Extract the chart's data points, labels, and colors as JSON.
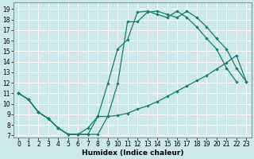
{
  "xlabel": "Humidex (Indice chaleur)",
  "background_color": "#cce8e8",
  "grid_color": "#b8d8d8",
  "line_color": "#1a7a6a",
  "xlim": [
    -0.5,
    23.5
  ],
  "ylim": [
    6.8,
    19.6
  ],
  "xticks": [
    0,
    1,
    2,
    3,
    4,
    5,
    6,
    7,
    8,
    9,
    10,
    11,
    12,
    13,
    14,
    15,
    16,
    17,
    18,
    19,
    20,
    21,
    22,
    23
  ],
  "yticks": [
    7,
    8,
    9,
    10,
    11,
    12,
    13,
    14,
    15,
    16,
    17,
    18,
    19
  ],
  "curve1_x": [
    0,
    1,
    2,
    3,
    4,
    5,
    6,
    7,
    8,
    9,
    10,
    11,
    12,
    13,
    14,
    15,
    16,
    17,
    18,
    19,
    20,
    21,
    22,
    23
  ],
  "curve1_y": [
    11,
    10.4,
    9.2,
    8.6,
    7.7,
    7.1,
    7.1,
    7.1,
    7.1,
    8.8,
    11.9,
    17.8,
    17.8,
    18.7,
    18.8,
    18.5,
    18.2,
    18.8,
    18.2,
    17.3,
    16.2,
    15.2,
    13.4,
    12.1
  ],
  "curve2_x": [
    0,
    1,
    2,
    3,
    4,
    5,
    6,
    7,
    8,
    9,
    10,
    11,
    12,
    13,
    14,
    15,
    16,
    17,
    18,
    19,
    20,
    21,
    22
  ],
  "curve2_y": [
    11,
    10.4,
    9.2,
    8.6,
    7.7,
    7.1,
    7.1,
    7.7,
    8.8,
    11.9,
    15.2,
    16.1,
    18.7,
    18.8,
    18.5,
    18.2,
    18.8,
    18.2,
    17.3,
    16.2,
    15.2,
    13.4,
    12.1
  ],
  "curve3_x": [
    0,
    1,
    2,
    3,
    4,
    5,
    6,
    7,
    8,
    9,
    10,
    11,
    12,
    13,
    14,
    15,
    16,
    17,
    18,
    19,
    20,
    21,
    22,
    23
  ],
  "curve3_y": [
    11,
    10.4,
    9.2,
    8.6,
    7.7,
    7.1,
    7.1,
    7.1,
    8.8,
    8.8,
    8.9,
    9.1,
    9.5,
    9.8,
    10.2,
    10.7,
    11.2,
    11.7,
    12.2,
    12.7,
    13.3,
    13.9,
    14.6,
    12.1
  ],
  "tick_fontsize": 5.5,
  "xlabel_fontsize": 6.5,
  "marker": "D",
  "markersize": 2.2,
  "linewidth": 0.9
}
